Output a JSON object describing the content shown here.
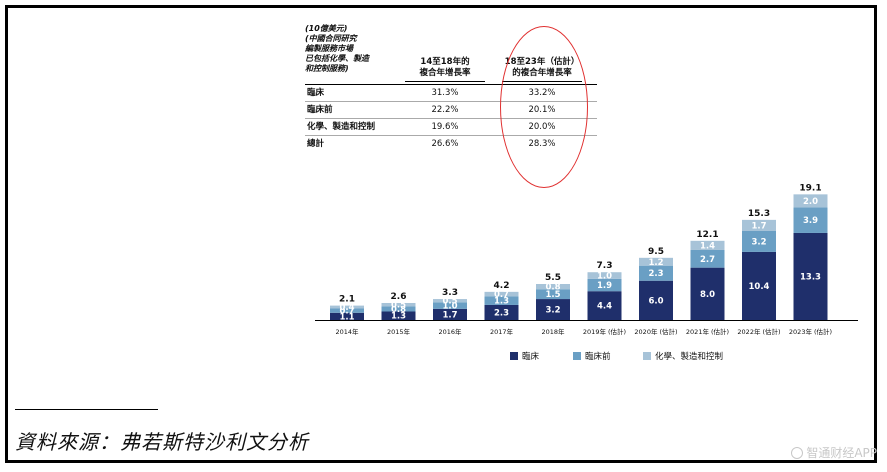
{
  "table": {
    "caption": "(10億美元)\n(中國合同研究\n編製服務市場\n已包括化學、製造\n和控制服務)",
    "col1_header": "14至18年的\n複合年增長率",
    "col2_header": "18至23年（估計）\n的複合年增長率",
    "rows": [
      {
        "label": "臨床",
        "v1": "31.3%",
        "v2": "33.2%"
      },
      {
        "label": "臨床前",
        "v1": "22.2%",
        "v2": "20.1%"
      },
      {
        "label": "化學、製造和控制",
        "v1": "19.6%",
        "v2": "20.0%"
      },
      {
        "label": "總計",
        "v1": "26.6%",
        "v2": "28.3%"
      }
    ]
  },
  "chart_data": {
    "type": "bar",
    "stacked": true,
    "categories": [
      "2014年",
      "2015年",
      "2016年",
      "2017年",
      "2018年",
      "2019年 (估計)",
      "2020年 (估計)",
      "2021年 (估計)",
      "2022年 (估計)",
      "2023年 (估計)"
    ],
    "series": [
      {
        "name": "臨床",
        "values": [
          1.1,
          1.3,
          1.7,
          2.3,
          3.2,
          4.4,
          6.0,
          8.0,
          10.4,
          13.3
        ],
        "color": "#1f2f6b"
      },
      {
        "name": "臨床前",
        "values": [
          0.7,
          0.8,
          1.0,
          1.3,
          1.5,
          1.9,
          2.3,
          2.7,
          3.2,
          3.9
        ],
        "color": "#6a9fc4"
      },
      {
        "name": "化學、製造和控制",
        "values": [
          0.4,
          0.5,
          0.5,
          0.7,
          0.8,
          1.0,
          1.2,
          1.4,
          1.7,
          2.0
        ],
        "color": "#a7c3d8"
      }
    ],
    "totals": [
      2.1,
      2.6,
      3.3,
      4.2,
      5.5,
      7.3,
      9.5,
      12.1,
      15.3,
      19.1
    ]
  },
  "legend": [
    "臨床",
    "臨床前",
    "化學、製造和控制"
  ],
  "source": "資料來源：弗若斯特沙利文分析",
  "watermark": "智通财经APP",
  "colors": {
    "highlight_circle": "#e03030"
  }
}
